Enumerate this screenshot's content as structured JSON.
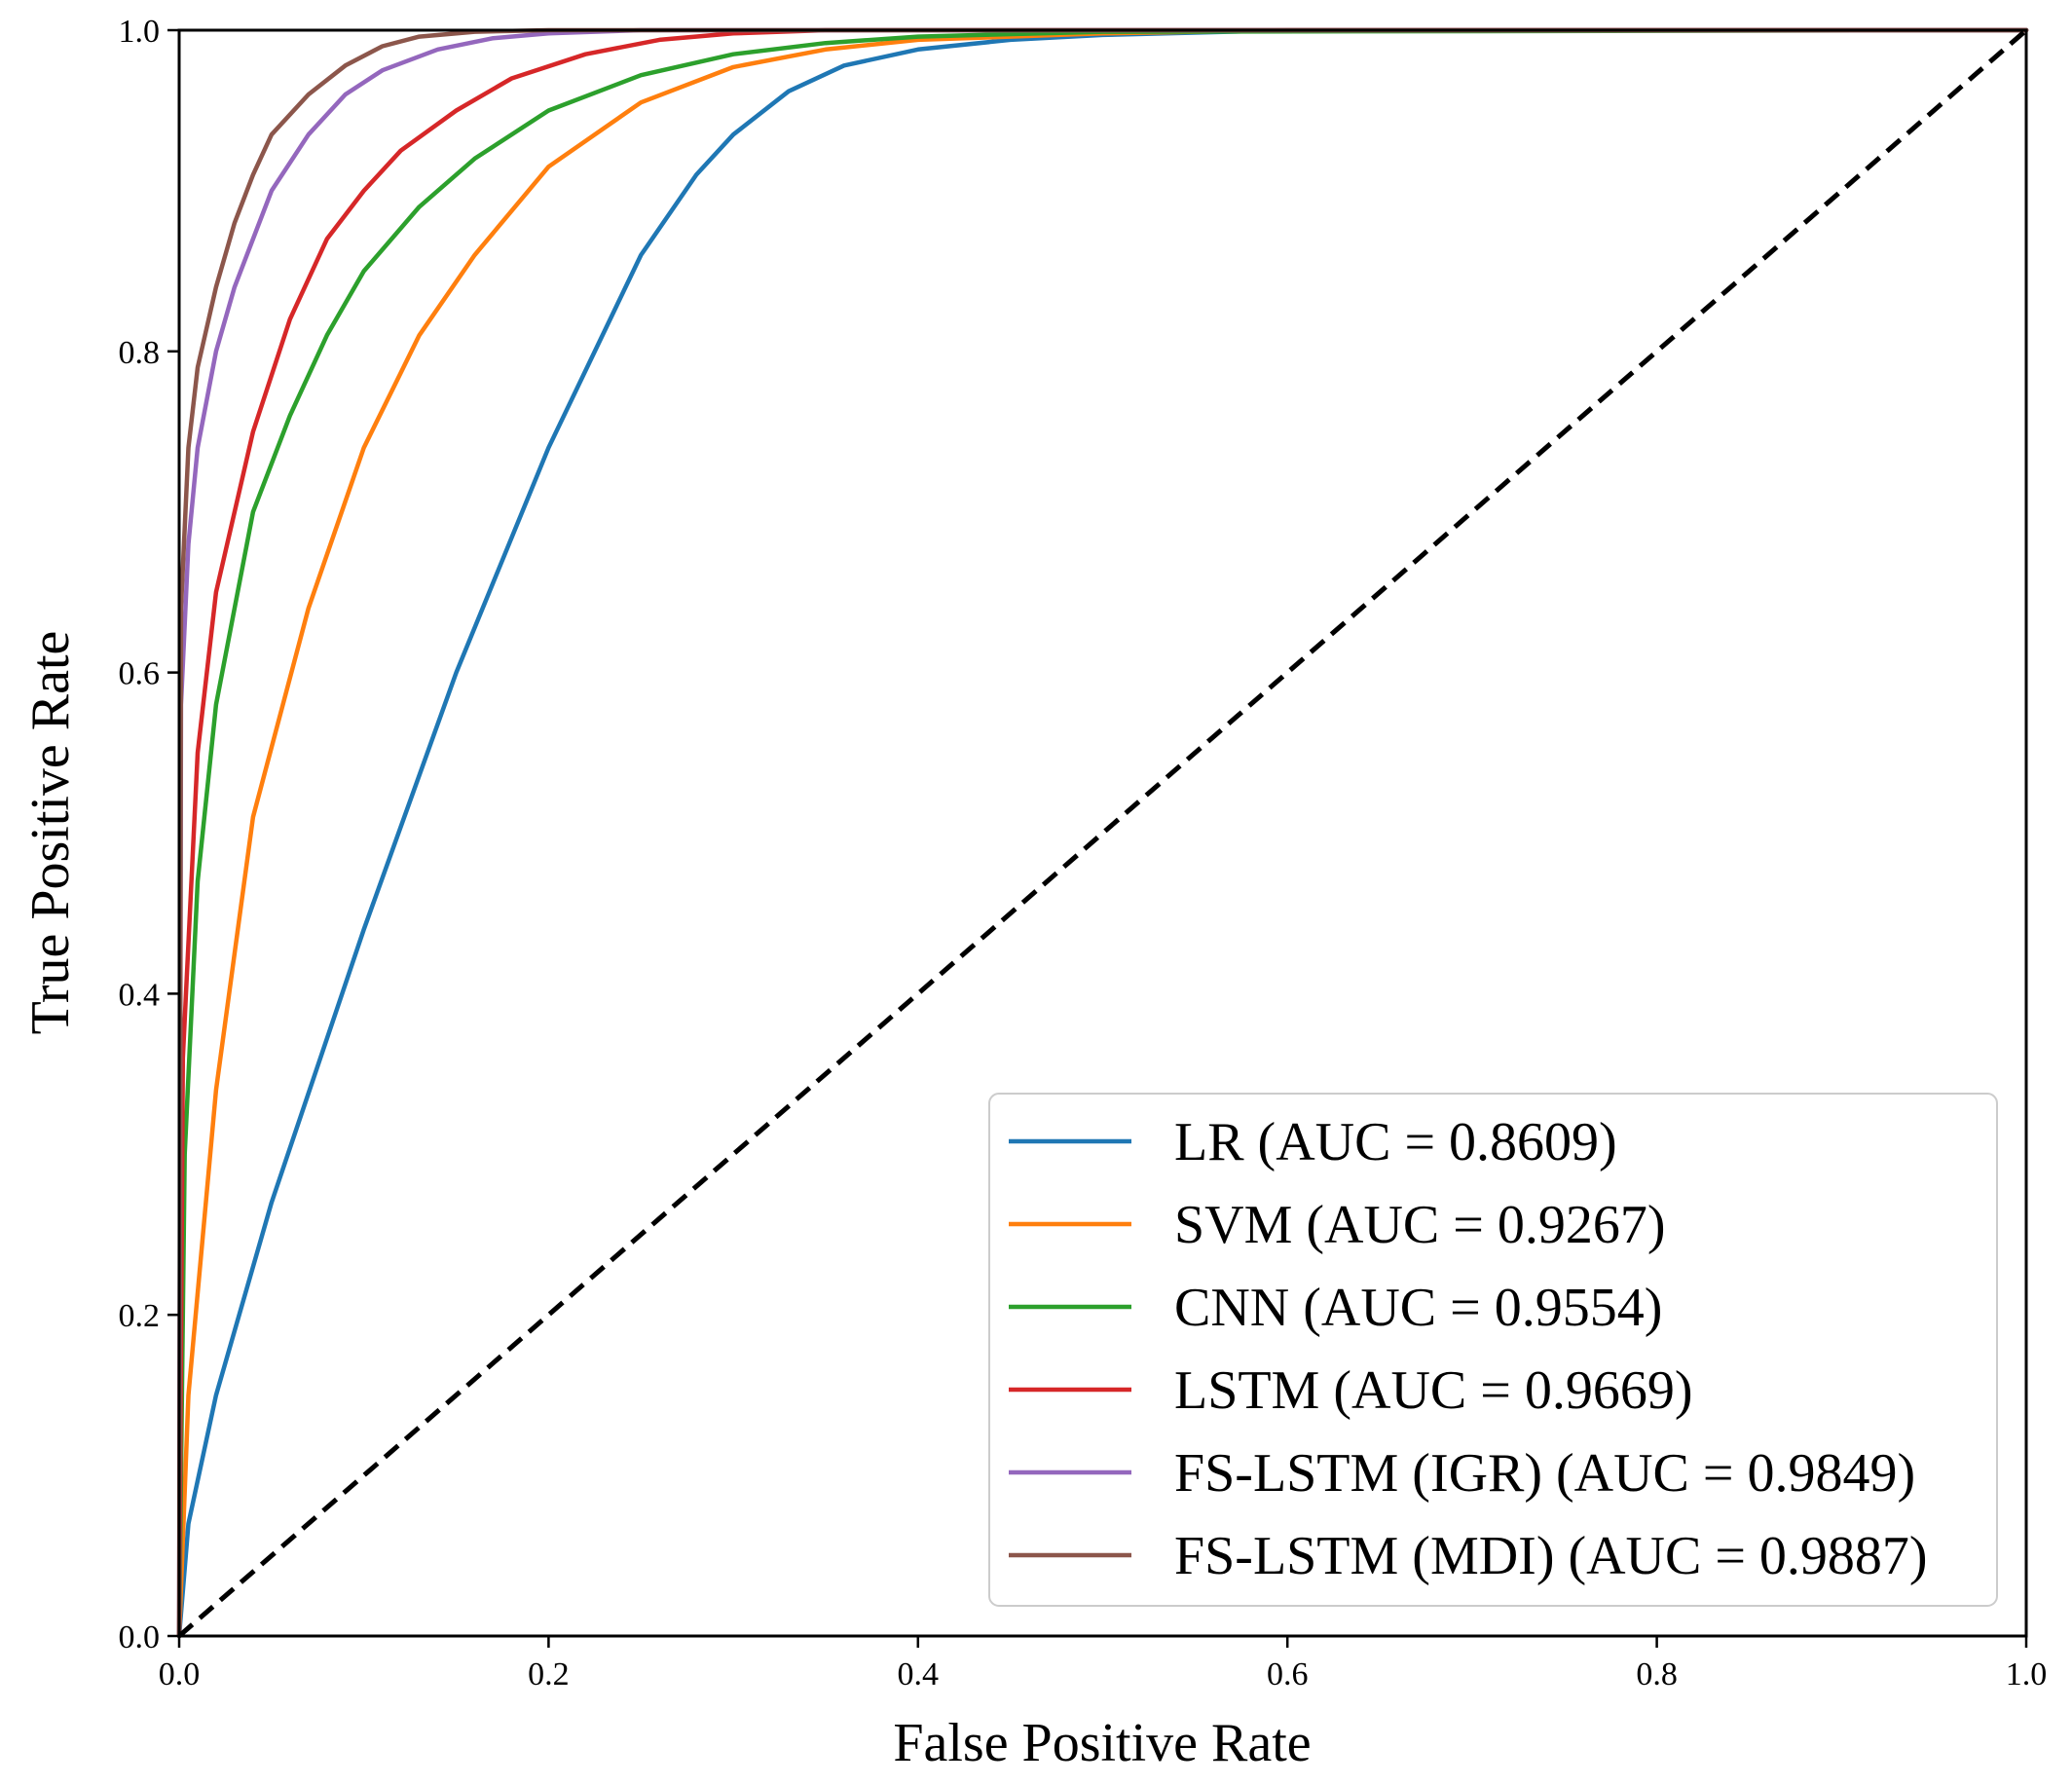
{
  "chart_data": {
    "type": "line",
    "title": "",
    "xlabel": "False Positive Rate",
    "ylabel": "True Positive Rate",
    "xlim": [
      0.0,
      1.0
    ],
    "ylim": [
      0.0,
      1.0
    ],
    "xticks": [
      "0.0",
      "0.2",
      "0.4",
      "0.6",
      "0.8",
      "1.0"
    ],
    "yticks": [
      "0.0",
      "0.2",
      "0.4",
      "0.6",
      "0.8",
      "1.0"
    ],
    "grid": false,
    "legend_position": "lower-right",
    "series": [
      {
        "name": "LR",
        "legend_label": "LR (AUC = 0.8609)",
        "color": "#1f77b4",
        "x": [
          0.0,
          0.005,
          0.02,
          0.05,
          0.1,
          0.15,
          0.2,
          0.25,
          0.28,
          0.3,
          0.33,
          0.36,
          0.4,
          0.45,
          0.5,
          0.6,
          1.0
        ],
        "y": [
          0.0,
          0.07,
          0.15,
          0.27,
          0.44,
          0.6,
          0.74,
          0.86,
          0.91,
          0.935,
          0.962,
          0.978,
          0.988,
          0.994,
          0.997,
          1.0,
          1.0
        ]
      },
      {
        "name": "SVM",
        "legend_label": "SVM (AUC = 0.9267)",
        "color": "#ff7f0e",
        "x": [
          0.0,
          0.005,
          0.02,
          0.04,
          0.07,
          0.1,
          0.13,
          0.16,
          0.2,
          0.25,
          0.3,
          0.35,
          0.4,
          0.5,
          0.6,
          1.0
        ],
        "y": [
          0.0,
          0.15,
          0.34,
          0.51,
          0.64,
          0.74,
          0.81,
          0.86,
          0.915,
          0.955,
          0.977,
          0.988,
          0.994,
          0.998,
          1.0,
          1.0
        ]
      },
      {
        "name": "CNN",
        "legend_label": "CNN (AUC = 0.9554)",
        "color": "#2ca02c",
        "x": [
          0.0,
          0.003,
          0.01,
          0.02,
          0.04,
          0.06,
          0.08,
          0.1,
          0.13,
          0.16,
          0.2,
          0.25,
          0.3,
          0.35,
          0.4,
          0.5,
          1.0
        ],
        "y": [
          0.0,
          0.3,
          0.47,
          0.58,
          0.7,
          0.76,
          0.81,
          0.85,
          0.89,
          0.92,
          0.95,
          0.972,
          0.985,
          0.992,
          0.996,
          0.999,
          1.0
        ]
      },
      {
        "name": "LSTM",
        "legend_label": "LSTM (AUC = 0.9669)",
        "color": "#d62728",
        "x": [
          0.0,
          0.002,
          0.01,
          0.02,
          0.04,
          0.06,
          0.08,
          0.1,
          0.12,
          0.15,
          0.18,
          0.22,
          0.26,
          0.3,
          0.35,
          1.0
        ],
        "y": [
          0.0,
          0.36,
          0.55,
          0.65,
          0.75,
          0.82,
          0.87,
          0.9,
          0.925,
          0.95,
          0.97,
          0.985,
          0.994,
          0.998,
          1.0,
          1.0
        ]
      },
      {
        "name": "FS-LSTM (IGR)",
        "legend_label": "FS-LSTM (IGR) (AUC = 0.9849)",
        "color": "#9467bd",
        "x": [
          0.0,
          0.001,
          0.005,
          0.01,
          0.02,
          0.03,
          0.05,
          0.07,
          0.09,
          0.11,
          0.14,
          0.17,
          0.2,
          0.25,
          1.0
        ],
        "y": [
          0.0,
          0.58,
          0.68,
          0.74,
          0.8,
          0.84,
          0.9,
          0.935,
          0.96,
          0.975,
          0.988,
          0.995,
          0.998,
          1.0,
          1.0
        ]
      },
      {
        "name": "FS-LSTM (MDI)",
        "legend_label": "FS-LSTM (MDI) (AUC = 0.9887)",
        "color": "#8c564b",
        "x": [
          0.0,
          0.001,
          0.005,
          0.01,
          0.02,
          0.03,
          0.04,
          0.05,
          0.07,
          0.09,
          0.11,
          0.13,
          0.16,
          0.2,
          1.0
        ],
        "y": [
          0.0,
          0.64,
          0.74,
          0.79,
          0.84,
          0.88,
          0.91,
          0.935,
          0.96,
          0.978,
          0.99,
          0.996,
          0.999,
          1.0,
          1.0
        ]
      },
      {
        "name": "chance",
        "legend_label": "",
        "color": "#000000",
        "dashed": true,
        "x": [
          0.0,
          1.0
        ],
        "y": [
          0.0,
          1.0
        ]
      }
    ]
  }
}
